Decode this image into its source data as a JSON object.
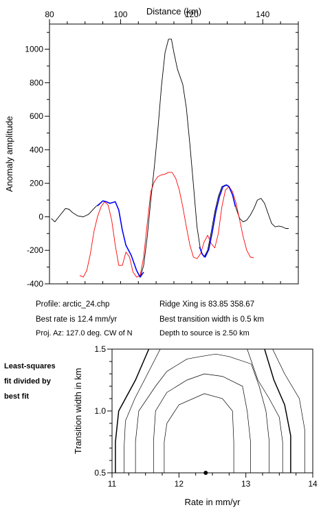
{
  "info": {
    "profile": "Profile: arctic_24.chp",
    "best_rate": "Best rate is 12.4 mm/yr",
    "proj_az": "Proj. Az: 127.0 deg. CW of N",
    "ridge_xing": "Ridge Xing is 83.85 358.67",
    "best_width": "Best transition width is 0.5 km",
    "depth": "Depth to source is   2.50 km"
  },
  "side_note": [
    "Least-squares",
    "fit divided by",
    "best fit"
  ],
  "colors": {
    "observed": "#000000",
    "synthetic": "#ff0000",
    "fit_window": "#0000ff",
    "contour": "#000000"
  },
  "chart_data": [
    {
      "type": "line",
      "xlabel": "Distance (km)",
      "ylabel": "Anomaly amplitude",
      "xlim": [
        80,
        150
      ],
      "ylim": [
        -400,
        1150
      ],
      "xticks": [
        80,
        100,
        120,
        140
      ],
      "yticks": [
        -400,
        -200,
        0,
        200,
        400,
        600,
        800,
        1000
      ],
      "series": [
        {
          "color": "#000000",
          "x": [
            80.5,
            81.5,
            83,
            84.5,
            85.5,
            86.5,
            88,
            89.5,
            91,
            93,
            95,
            96,
            97,
            98.5,
            99.5,
            100.5,
            101.5,
            103,
            104.5,
            105.5,
            106.5,
            107.5,
            108.5,
            109.5,
            110.5,
            111.5,
            112.5,
            113.5,
            114.3,
            115,
            116,
            117.5,
            118.5,
            119.5,
            120.5,
            121.5,
            122.5,
            123.5,
            124.5,
            125.5,
            126.5,
            127.5,
            128.5,
            129.5,
            130.5,
            131.5,
            132.5,
            133.5,
            134.5,
            135.5,
            136.5,
            137.5,
            138.5,
            139.5,
            140.5,
            141.5,
            142.5,
            143.5,
            144.5,
            145.5,
            146.5,
            147.3
          ],
          "y": [
            -10,
            -30,
            10,
            50,
            45,
            25,
            5,
            0,
            15,
            60,
            95,
            90,
            80,
            90,
            40,
            -80,
            -170,
            -230,
            -320,
            -360,
            -290,
            -120,
            100,
            300,
            520,
            780,
            980,
            1060,
            1060,
            980,
            880,
            790,
            650,
            430,
            190,
            -60,
            -200,
            -240,
            -200,
            -90,
            30,
            120,
            180,
            190,
            180,
            130,
            50,
            -10,
            -30,
            -20,
            10,
            50,
            100,
            110,
            80,
            20,
            -40,
            -60,
            -55,
            -60,
            -70,
            -70
          ]
        },
        {
          "color": "#ff0000",
          "x": [
            88.5,
            89.5,
            90.5,
            91.5,
            92.5,
            93.5,
            94.5,
            95.5,
            96.5,
            97.5,
            98.5,
            99.5,
            100.5,
            101.5,
            102.5,
            103.5,
            104.5,
            105.5,
            106.5,
            107.5,
            108.5,
            109.5,
            110.5,
            111.5,
            112.5,
            113.5,
            114.5,
            115.5,
            116.5,
            117.5,
            118.5,
            119.5,
            120.5,
            121.5,
            122.5,
            123.5,
            124.5,
            125.5,
            126.5,
            127.5,
            128.5,
            129.5,
            130.5,
            131.5,
            132.5,
            133.5,
            134.5,
            135.5,
            136.5,
            137.5
          ],
          "y": [
            -350,
            -360,
            -320,
            -220,
            -90,
            0,
            60,
            90,
            70,
            -20,
            -170,
            -290,
            -290,
            -210,
            -240,
            -330,
            -360,
            -350,
            -240,
            -40,
            150,
            210,
            240,
            250,
            255,
            265,
            265,
            230,
            160,
            60,
            -60,
            -170,
            -240,
            -250,
            -220,
            -150,
            -110,
            -160,
            -185,
            -100,
            60,
            160,
            180,
            150,
            80,
            -20,
            -120,
            -200,
            -240,
            -245
          ]
        },
        {
          "color": "#0000ff",
          "x": [
            93.5,
            95,
            96,
            97,
            98.5,
            99.5,
            100.5,
            101.5,
            103,
            104.5,
            105.5,
            106.5
          ],
          "y": [
            65,
            95,
            90,
            80,
            90,
            40,
            -80,
            -170,
            -230,
            -320,
            -360,
            -330
          ],
          "x2": [
            122.2,
            123,
            123.8,
            124.8,
            125.8,
            126.8,
            127.8,
            128.8,
            129.8,
            130.5,
            131.5,
            132.3
          ],
          "y2": [
            -180,
            -225,
            -240,
            -195,
            -90,
            30,
            120,
            180,
            190,
            180,
            130,
            60
          ]
        }
      ]
    },
    {
      "type": "contour",
      "xlabel": "Rate in mm/yr",
      "ylabel": "Transition width in km",
      "xlim": [
        11,
        14
      ],
      "ylim": [
        0.5,
        1.5
      ],
      "xticks": [
        11,
        12,
        13,
        14
      ],
      "yticks": [
        0.5,
        1.0,
        1.5
      ],
      "best_fit": {
        "rate": 12.4,
        "width": 0.5
      },
      "contours": [
        {
          "x": [
            11.18,
            11.18,
            11.2,
            11.34,
            11.55,
            11.72
          ],
          "y": [
            0.5,
            0.7,
            0.92,
            1.1,
            1.32,
            1.5
          ],
          "bold": false
        },
        {
          "x": [
            11.05,
            11.05,
            11.1,
            11.35,
            11.55
          ],
          "y": [
            0.5,
            0.75,
            1.0,
            1.25,
            1.5
          ],
          "bold": true
        },
        {
          "x": [
            11.35,
            11.35,
            11.4,
            11.65,
            11.82,
            12.12,
            12.32,
            12.55,
            12.75,
            13.08,
            13.2,
            13.3,
            13.35,
            13.35
          ],
          "y": [
            0.5,
            0.75,
            1.0,
            1.2,
            1.32,
            1.42,
            1.44,
            1.46,
            1.44,
            1.38,
            1.2,
            1.0,
            0.75,
            0.5
          ],
          "bold": false
        },
        {
          "x": [
            11.62,
            11.62,
            11.65,
            11.82,
            12.12,
            12.38,
            12.65,
            12.95,
            13.02,
            13.07,
            13.07
          ],
          "y": [
            0.5,
            0.75,
            1.0,
            1.15,
            1.25,
            1.3,
            1.28,
            1.2,
            1.0,
            0.75,
            0.5
          ],
          "bold": false
        },
        {
          "x": [
            11.78,
            11.78,
            11.82,
            12.0,
            12.38,
            12.65,
            12.8,
            12.82,
            12.82
          ],
          "y": [
            0.5,
            0.75,
            0.9,
            1.05,
            1.14,
            1.1,
            1.0,
            0.75,
            0.5
          ],
          "bold": false
        },
        {
          "x": [
            13.02,
            13.18,
            13.35,
            13.5,
            13.55,
            13.55
          ],
          "y": [
            1.5,
            1.25,
            1.1,
            0.95,
            0.75,
            0.5
          ],
          "bold": false
        },
        {
          "x": [
            13.28,
            13.42,
            13.58,
            13.67,
            13.67
          ],
          "y": [
            1.5,
            1.25,
            1.05,
            0.8,
            0.5
          ],
          "bold": true
        },
        {
          "x": [
            13.4,
            13.58,
            13.8,
            13.88,
            13.88
          ],
          "y": [
            1.5,
            1.3,
            1.1,
            0.85,
            0.5
          ],
          "bold": false
        }
      ]
    }
  ]
}
